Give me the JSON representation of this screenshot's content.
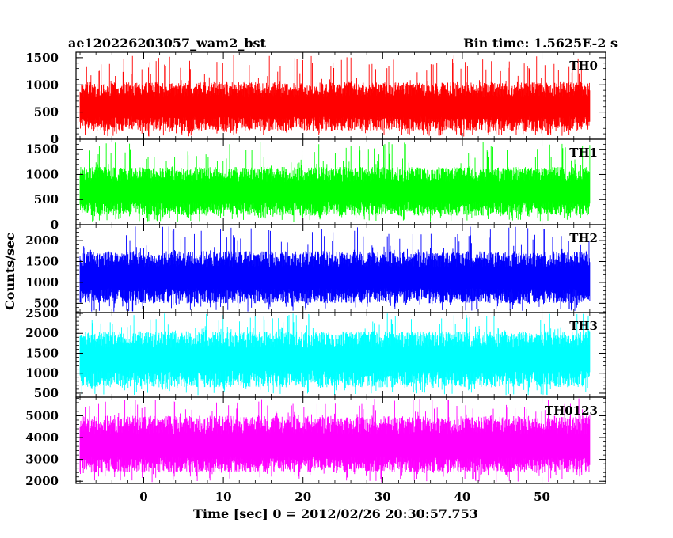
{
  "chart_data": {
    "type": "line",
    "title": "ae120226203057_wam2_bst",
    "subtitle": "Bin time: 1.5625E-2 s",
    "xlabel": "Time [sec] 0 = 2012/02/26 20:30:57.753",
    "ylabel": "Counts/sec",
    "xlim": [
      -8.5,
      58
    ],
    "data_x_range": [
      -8,
      56
    ],
    "x_ticks": [
      0,
      10,
      20,
      30,
      40,
      50
    ],
    "x_tick_labels": [
      "0",
      "10",
      "20",
      "30",
      "40",
      "50"
    ],
    "grid": false,
    "panels": [
      {
        "name": "TH0",
        "color": "#ff0000",
        "ylim": [
          0,
          1600
        ],
        "y_ticks": [
          0,
          500,
          1000,
          1500
        ],
        "y_tick_labels": [
          "0",
          "500",
          "1000",
          "1500"
        ],
        "mean": 600,
        "low": 150,
        "high": 1050,
        "min": 50,
        "max": 1550
      },
      {
        "name": "TH1",
        "color": "#00ff00",
        "ylim": [
          0,
          1700
        ],
        "y_ticks": [
          0,
          500,
          1000,
          1500
        ],
        "y_tick_labels": [
          "0",
          "500",
          "1000",
          "1500"
        ],
        "mean": 650,
        "low": 180,
        "high": 1150,
        "min": 60,
        "max": 1650
      },
      {
        "name": "TH2",
        "color": "#0000ff",
        "ylim": [
          280,
          2380
        ],
        "y_ticks": [
          500,
          1000,
          1500,
          2000
        ],
        "y_tick_labels": [
          "500",
          "1000",
          "1500",
          "2000"
        ],
        "mean": 1100,
        "low": 500,
        "high": 1750,
        "min": 300,
        "max": 2350
      },
      {
        "name": "TH3",
        "color": "#00ffff",
        "ylim": [
          400,
          2520
        ],
        "y_ticks": [
          500,
          1000,
          1500,
          2000,
          2500
        ],
        "y_tick_labels": [
          "500",
          "1000",
          "1500",
          "2000",
          "2500"
        ],
        "mean": 1350,
        "low": 650,
        "high": 2050,
        "min": 450,
        "max": 2500
      },
      {
        "name": "TH0123",
        "color": "#ff00ff",
        "ylim": [
          1900,
          5850
        ],
        "y_ticks": [
          2000,
          3000,
          4000,
          5000
        ],
        "y_tick_labels": [
          "2000",
          "3000",
          "4000",
          "5000"
        ],
        "mean": 3600,
        "low": 2400,
        "high": 5000,
        "min": 1950,
        "max": 5800
      }
    ]
  }
}
